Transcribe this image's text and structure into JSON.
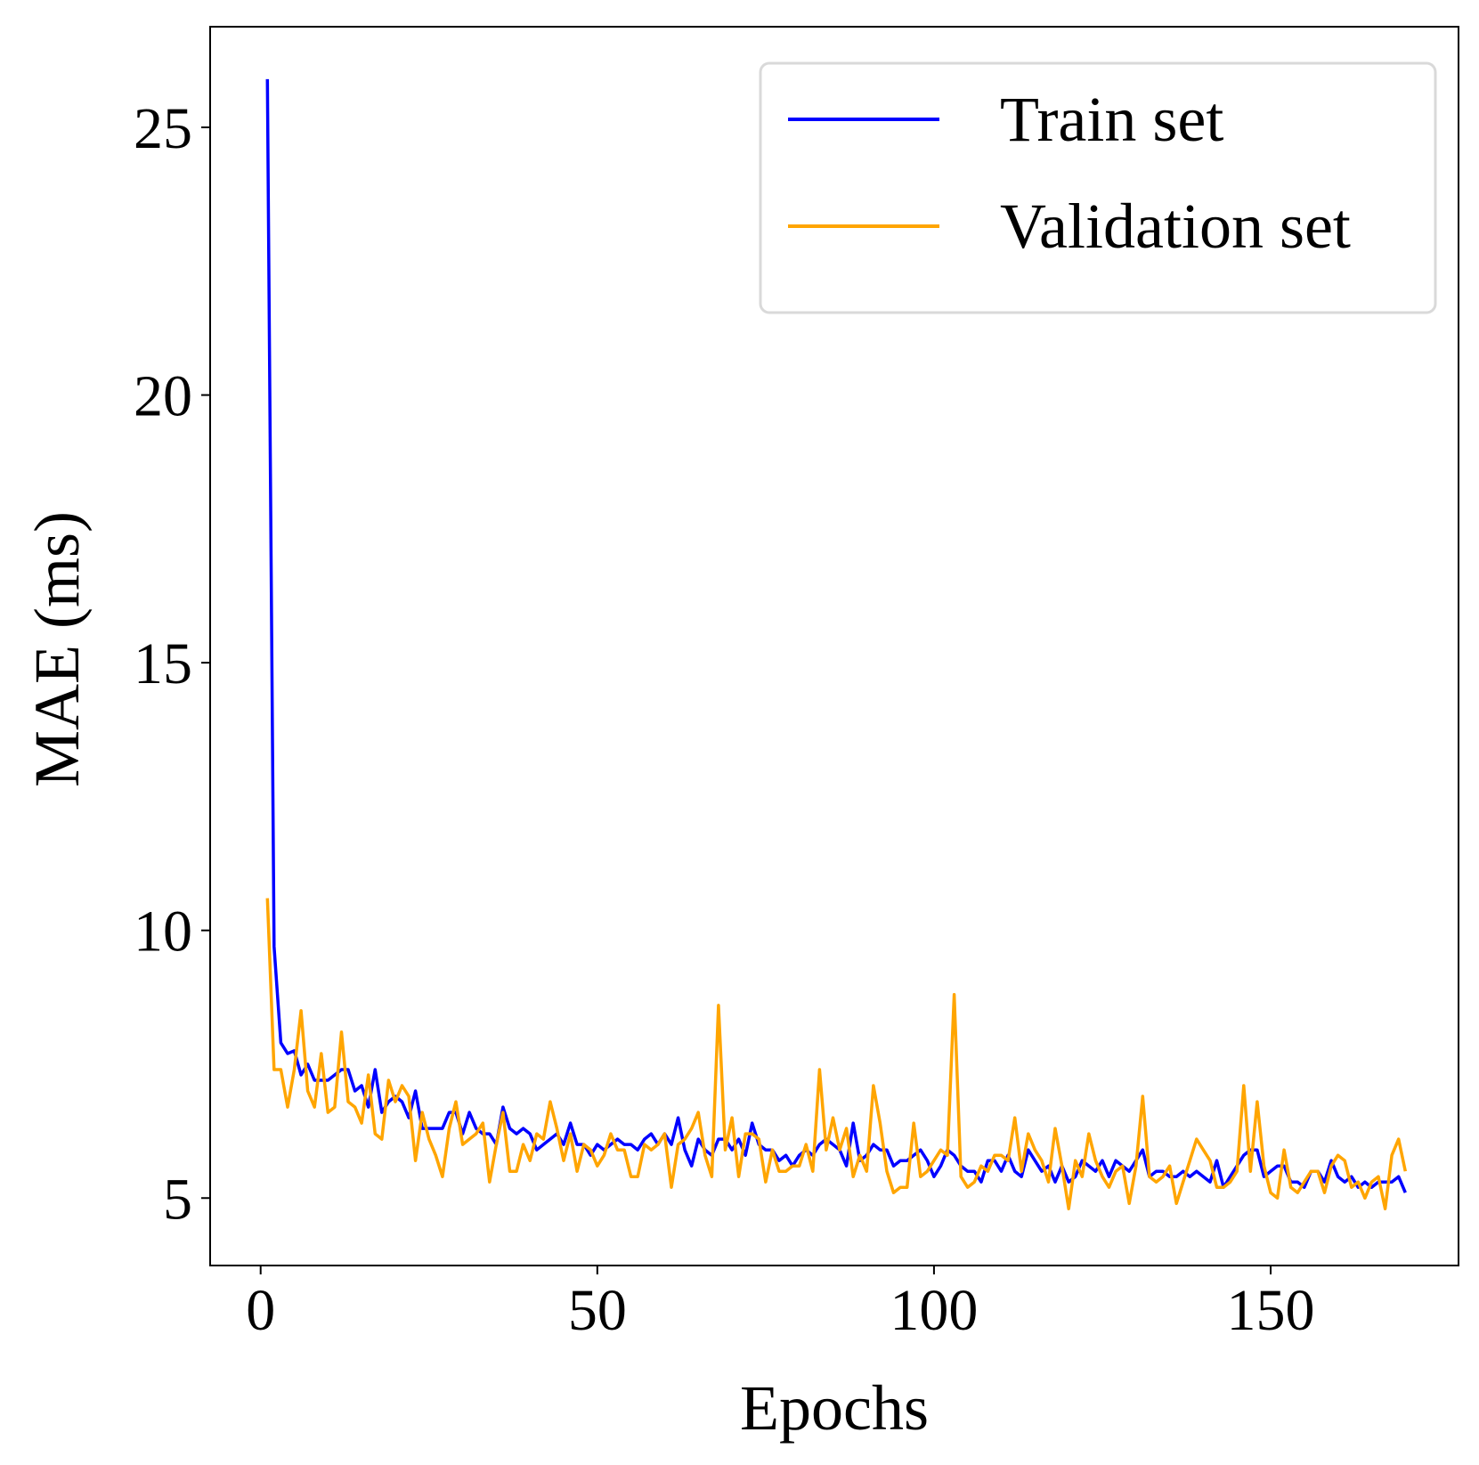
{
  "chart_data": {
    "type": "line",
    "x_label": "Epochs",
    "y_label": "MAE (ms)",
    "x": [
      1,
      2,
      3,
      4,
      5,
      6,
      7,
      8,
      9,
      10,
      11,
      12,
      13,
      14,
      15,
      16,
      17,
      18,
      19,
      20,
      21,
      22,
      23,
      24,
      25,
      26,
      27,
      28,
      29,
      30,
      31,
      32,
      33,
      34,
      35,
      36,
      37,
      38,
      39,
      40,
      41,
      42,
      43,
      44,
      45,
      46,
      47,
      48,
      49,
      50,
      51,
      52,
      53,
      54,
      55,
      56,
      57,
      58,
      59,
      60,
      61,
      62,
      63,
      64,
      65,
      66,
      67,
      68,
      69,
      70,
      71,
      72,
      73,
      74,
      75,
      76,
      77,
      78,
      79,
      80,
      81,
      82,
      83,
      84,
      85,
      86,
      87,
      88,
      89,
      90,
      91,
      92,
      93,
      94,
      95,
      96,
      97,
      98,
      99,
      100,
      101,
      102,
      103,
      104,
      105,
      106,
      107,
      108,
      109,
      110,
      111,
      112,
      113,
      114,
      115,
      116,
      117,
      118,
      119,
      120,
      121,
      122,
      123,
      124,
      125,
      126,
      127,
      128,
      129,
      130,
      131,
      132,
      133,
      134,
      135,
      136,
      137,
      138,
      139,
      140,
      141,
      142,
      143,
      144,
      145,
      146,
      147,
      148,
      149,
      150,
      151,
      152,
      153,
      154,
      155,
      156,
      157,
      158,
      159,
      160,
      161,
      162,
      163,
      164,
      165,
      166,
      167,
      168,
      169,
      170
    ],
    "series": [
      {
        "name": "Train set",
        "color": "#0000ff",
        "values": [
          25.9,
          9.7,
          7.9,
          7.7,
          7.75,
          7.3,
          7.5,
          7.2,
          7.2,
          7.2,
          7.3,
          7.4,
          7.4,
          7.0,
          7.1,
          6.7,
          7.4,
          6.6,
          6.8,
          6.9,
          6.8,
          6.5,
          7.0,
          6.3,
          6.3,
          6.3,
          6.3,
          6.6,
          6.6,
          6.2,
          6.6,
          6.3,
          6.2,
          6.2,
          6.0,
          6.7,
          6.3,
          6.2,
          6.3,
          6.2,
          5.9,
          6.0,
          6.1,
          6.2,
          6.0,
          6.4,
          6.0,
          6.0,
          5.8,
          6.0,
          5.9,
          6.0,
          6.1,
          6.0,
          6.0,
          5.9,
          6.1,
          6.2,
          6.0,
          6.2,
          6.0,
          6.5,
          5.9,
          5.6,
          6.1,
          5.9,
          5.8,
          6.1,
          6.1,
          5.9,
          6.1,
          5.8,
          6.4,
          6.0,
          5.9,
          5.9,
          5.7,
          5.8,
          5.6,
          5.8,
          5.9,
          5.8,
          6.0,
          6.1,
          6.0,
          5.9,
          5.6,
          6.4,
          5.7,
          5.8,
          6.0,
          5.9,
          5.9,
          5.6,
          5.7,
          5.7,
          5.8,
          5.9,
          5.7,
          5.4,
          5.6,
          5.9,
          5.8,
          5.6,
          5.5,
          5.5,
          5.3,
          5.7,
          5.7,
          5.5,
          5.8,
          5.5,
          5.4,
          5.9,
          5.7,
          5.5,
          5.6,
          5.3,
          5.6,
          5.3,
          5.4,
          5.7,
          5.6,
          5.5,
          5.7,
          5.4,
          5.7,
          5.6,
          5.5,
          5.7,
          5.9,
          5.4,
          5.5,
          5.5,
          5.4,
          5.4,
          5.5,
          5.4,
          5.5,
          5.4,
          5.3,
          5.7,
          5.2,
          5.4,
          5.6,
          5.8,
          5.9,
          5.9,
          5.4,
          5.5,
          5.6,
          5.6,
          5.3,
          5.3,
          5.2,
          5.5,
          5.5,
          5.3,
          5.7,
          5.4,
          5.3,
          5.4,
          5.2,
          5.3,
          5.2,
          5.3,
          5.3,
          5.3,
          5.4,
          5.1
        ]
      },
      {
        "name": "Validation set",
        "color": "#ffa500",
        "values": [
          10.6,
          7.4,
          7.4,
          6.7,
          7.4,
          8.5,
          7.0,
          6.7,
          7.7,
          6.6,
          6.7,
          8.1,
          6.8,
          6.7,
          6.4,
          7.3,
          6.2,
          6.1,
          7.2,
          6.8,
          7.1,
          6.9,
          5.7,
          6.6,
          6.1,
          5.8,
          5.4,
          6.3,
          6.8,
          6.0,
          6.1,
          6.2,
          6.4,
          5.3,
          6.0,
          6.6,
          5.5,
          5.5,
          6.0,
          5.7,
          6.2,
          6.1,
          6.8,
          6.3,
          5.7,
          6.2,
          5.5,
          6.0,
          5.9,
          5.6,
          5.8,
          6.2,
          5.9,
          5.9,
          5.4,
          5.4,
          6.0,
          5.9,
          6.0,
          6.2,
          5.2,
          6.0,
          6.1,
          6.3,
          6.6,
          5.8,
          5.4,
          8.6,
          5.9,
          6.5,
          5.4,
          6.2,
          6.2,
          6.1,
          5.3,
          5.9,
          5.5,
          5.5,
          5.6,
          5.6,
          6.0,
          5.5,
          7.4,
          5.9,
          6.5,
          5.9,
          6.3,
          5.4,
          5.8,
          5.5,
          7.1,
          6.4,
          5.5,
          5.1,
          5.2,
          5.2,
          6.4,
          5.4,
          5.5,
          5.7,
          5.9,
          5.8,
          8.8,
          5.4,
          5.2,
          5.3,
          5.6,
          5.5,
          5.8,
          5.8,
          5.7,
          6.5,
          5.5,
          6.2,
          5.9,
          5.7,
          5.3,
          6.3,
          5.6,
          4.8,
          5.7,
          5.4,
          6.2,
          5.7,
          5.4,
          5.2,
          5.5,
          5.6,
          4.9,
          5.6,
          6.9,
          5.4,
          5.3,
          5.4,
          5.6,
          4.9,
          5.3,
          5.7,
          6.1,
          5.9,
          5.7,
          5.2,
          5.2,
          5.3,
          5.5,
          7.1,
          5.5,
          6.8,
          5.6,
          5.1,
          5.0,
          5.9,
          5.2,
          5.1,
          5.3,
          5.5,
          5.5,
          5.1,
          5.6,
          5.8,
          5.7,
          5.2,
          5.3,
          5.0,
          5.3,
          5.4,
          4.8,
          5.8,
          6.1,
          5.5
        ]
      }
    ],
    "xlim": [
      -7.5,
      177.9
    ],
    "xticks": [
      0,
      50,
      100,
      150
    ],
    "ylim": [
      3.74,
      26.88
    ],
    "yticks": [
      5,
      10,
      15,
      20,
      25
    ],
    "legend": "upper right",
    "grid": false
  }
}
